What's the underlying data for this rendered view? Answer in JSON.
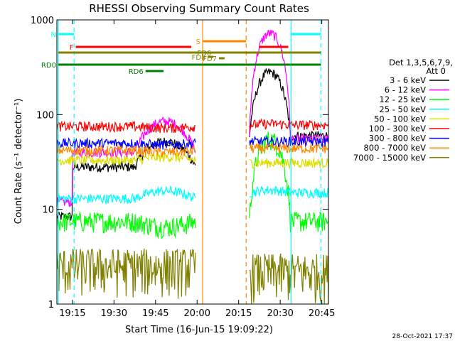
{
  "chart_data": {
    "type": "line",
    "title": "RHESSI Observing Summary Count Rates",
    "xlabel": "Start Time (16-Jun-15 19:09:22)",
    "ylabel": "Count Rate (s⁻¹ detector⁻¹)",
    "yscale": "log",
    "ylim": [
      1,
      1000
    ],
    "xlim_minutes": [
      0,
      98
    ],
    "x_ticks": [
      {
        "label": "19:15",
        "t": 5.6
      },
      {
        "label": "19:30",
        "t": 20.6
      },
      {
        "label": "19:45",
        "t": 35.6
      },
      {
        "label": "20:00",
        "t": 50.6
      },
      {
        "label": "20:15",
        "t": 65.6
      },
      {
        "label": "20:30",
        "t": 80.6
      },
      {
        "label": "20:45",
        "t": 95.6
      }
    ],
    "y_ticks": [
      {
        "label": "1",
        "v": 1
      },
      {
        "label": "10",
        "v": 10
      },
      {
        "label": "100",
        "v": 100
      },
      {
        "label": "1000",
        "v": 1000
      }
    ],
    "legend_header": [
      "Det 1,3,5,6,7,9,",
      "Att 0"
    ],
    "series": [
      {
        "name": "3 - 6 keV",
        "color": "#000000",
        "base_pre": 28,
        "base_mid": 55,
        "base_post": 60,
        "peak": 280
      },
      {
        "name": "6 - 12 keV",
        "color": "#ff00ff",
        "base_pre": 40,
        "base_mid": 90,
        "base_post": 55,
        "peak": 720
      },
      {
        "name": "12 - 25 keV",
        "color": "#00ff00",
        "base_pre": 7.5,
        "base_mid": 6.5,
        "base_post": 7.5,
        "peak": 55
      },
      {
        "name": "25 - 50 keV",
        "color": "#00ffff",
        "base_pre": 13,
        "base_mid": 16,
        "base_post": 15,
        "peak": 16
      },
      {
        "name": "50 - 100 keV",
        "color": "#dddd00",
        "base_pre": 33,
        "base_mid": 36,
        "base_post": 31,
        "peak": 31
      },
      {
        "name": "100 - 300 keV",
        "color": "#ff0000",
        "base_pre": 75,
        "base_mid": 72,
        "base_post": 78,
        "peak": 80
      },
      {
        "name": "300 - 800 keV",
        "color": "#0000ff",
        "base_pre": 50,
        "base_mid": 48,
        "base_post": 52,
        "peak": 52
      },
      {
        "name": "800 - 7000 keV",
        "color": "#ff8800",
        "base_pre": 42,
        "base_mid": 40,
        "base_post": 44,
        "peak": 44
      },
      {
        "name": "7000 - 15000 keV",
        "color": "#808000",
        "base_pre": 2.5,
        "base_mid": 2.5,
        "base_post": 2.2,
        "peak": 2.2
      }
    ],
    "vertical_lines": [
      {
        "t": 0.5,
        "color": "#00ffff",
        "style": "solid"
      },
      {
        "t": 6.2,
        "color": "#00ffff",
        "style": "dashed"
      },
      {
        "t": 52.6,
        "color": "#ff8800",
        "style": "solid"
      },
      {
        "t": 68.3,
        "color": "#ff8800",
        "style": "dashed"
      },
      {
        "t": 84.5,
        "color": "#00ffff",
        "style": "solid"
      },
      {
        "t": 95.3,
        "color": "#00ffff",
        "style": "dashed"
      }
    ],
    "interval_bars": [
      {
        "label": "N",
        "color": "#00ffff",
        "segments": [
          [
            0.5,
            6.2
          ],
          [
            84.5,
            95.3
          ]
        ]
      },
      {
        "label": "S",
        "color": "#ff8800",
        "segments": [
          [
            52.6,
            68.3
          ]
        ]
      },
      {
        "label": "F",
        "color": "#ff0000",
        "segments": [
          [
            6.8,
            48.5
          ],
          [
            73.0,
            83.5
          ]
        ]
      },
      {
        "label": "",
        "color": "#808000",
        "segments": [
          [
            0.5,
            95.3
          ]
        ]
      },
      {
        "label": "FD7",
        "color": "#808000",
        "segments": [
          [
            58.5,
            60.5
          ]
        ]
      },
      {
        "label": "FD6",
        "color": "#808000",
        "segments": [
          [
            56.5,
            58.5
          ]
        ]
      },
      {
        "label": "FD8",
        "color": "#808000",
        "segments": [
          [
            54.5,
            56.5
          ]
        ]
      },
      {
        "label": "RD0",
        "color": "#008000",
        "segments": [
          [
            0.5,
            95.3
          ]
        ]
      },
      {
        "label": "RD6",
        "color": "#008000",
        "segments": [
          [
            32.0,
            38.5
          ]
        ]
      }
    ],
    "timestamp": "28-Oct-2021 17:37"
  }
}
